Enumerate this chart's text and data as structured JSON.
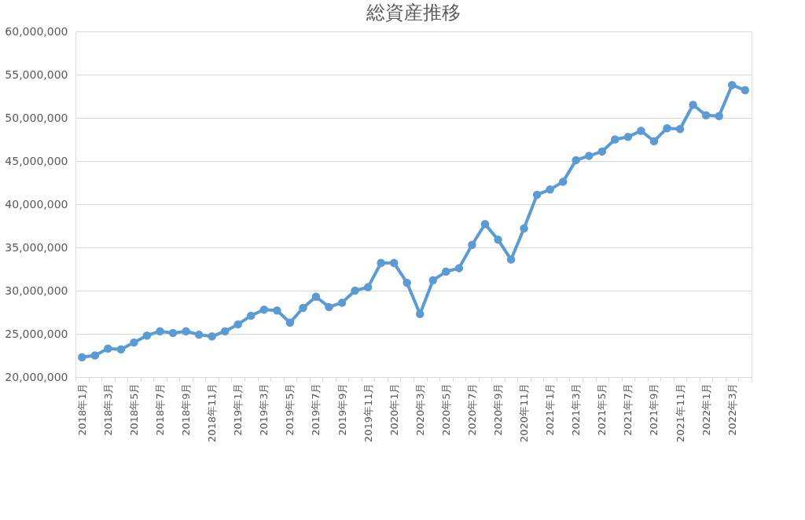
{
  "chart_data": {
    "type": "line",
    "title": "総資産推移",
    "categories": [
      "2018年1月",
      null,
      "2018年3月",
      null,
      "2018年5月",
      null,
      "2018年7月",
      null,
      "2018年9月",
      null,
      "2018年11月",
      null,
      "2019年1月",
      null,
      "2019年3月",
      null,
      "2019年5月",
      null,
      "2019年7月",
      null,
      "2019年9月",
      null,
      "2019年11月",
      null,
      "2020年1月",
      null,
      "2020年3月",
      null,
      "2020年5月",
      null,
      "2020年7月",
      null,
      "2020年9月",
      null,
      "2020年11月",
      null,
      "2021年1月",
      null,
      "2021年3月",
      null,
      "2021年5月",
      null,
      "2021年7月",
      null,
      "2021年9月",
      null,
      "2021年11月",
      null,
      "2022年1月",
      null,
      "2022年3月",
      null
    ],
    "series": [
      {
        "color": "#5b9bd5",
        "values": [
          22300000,
          22500000,
          23300000,
          23200000,
          24000000,
          24800000,
          25300000,
          25100000,
          25300000,
          24900000,
          24700000,
          25300000,
          26100000,
          27100000,
          27800000,
          27700000,
          26300000,
          28000000,
          29300000,
          28100000,
          28600000,
          30000000,
          30400000,
          33200000,
          33200000,
          30900000,
          27300000,
          31200000,
          32200000,
          32600000,
          35300000,
          37700000,
          35900000,
          33600000,
          37200000,
          41100000,
          41700000,
          42600000,
          45100000,
          45600000,
          46100000,
          47500000,
          47800000,
          48500000,
          47300000,
          48800000,
          48700000,
          51500000,
          50300000,
          50200000,
          53800000,
          53200000
        ]
      }
    ],
    "ylim": [
      20000000,
      60000000
    ],
    "yticks": [
      {
        "value": 20000000,
        "label": "20,000,000"
      },
      {
        "value": 25000000,
        "label": "25,000,000"
      },
      {
        "value": 30000000,
        "label": "30,000,000"
      },
      {
        "value": 35000000,
        "label": "35,000,000"
      },
      {
        "value": 40000000,
        "label": "40,000,000"
      },
      {
        "value": 45000000,
        "label": "45,000,000"
      },
      {
        "value": 50000000,
        "label": "50,000,000"
      },
      {
        "value": 55000000,
        "label": "55,000,000"
      },
      {
        "value": 60000000,
        "label": "60,000,000"
      }
    ],
    "grid": "y",
    "marker": "circle",
    "line_style": "solid"
  }
}
